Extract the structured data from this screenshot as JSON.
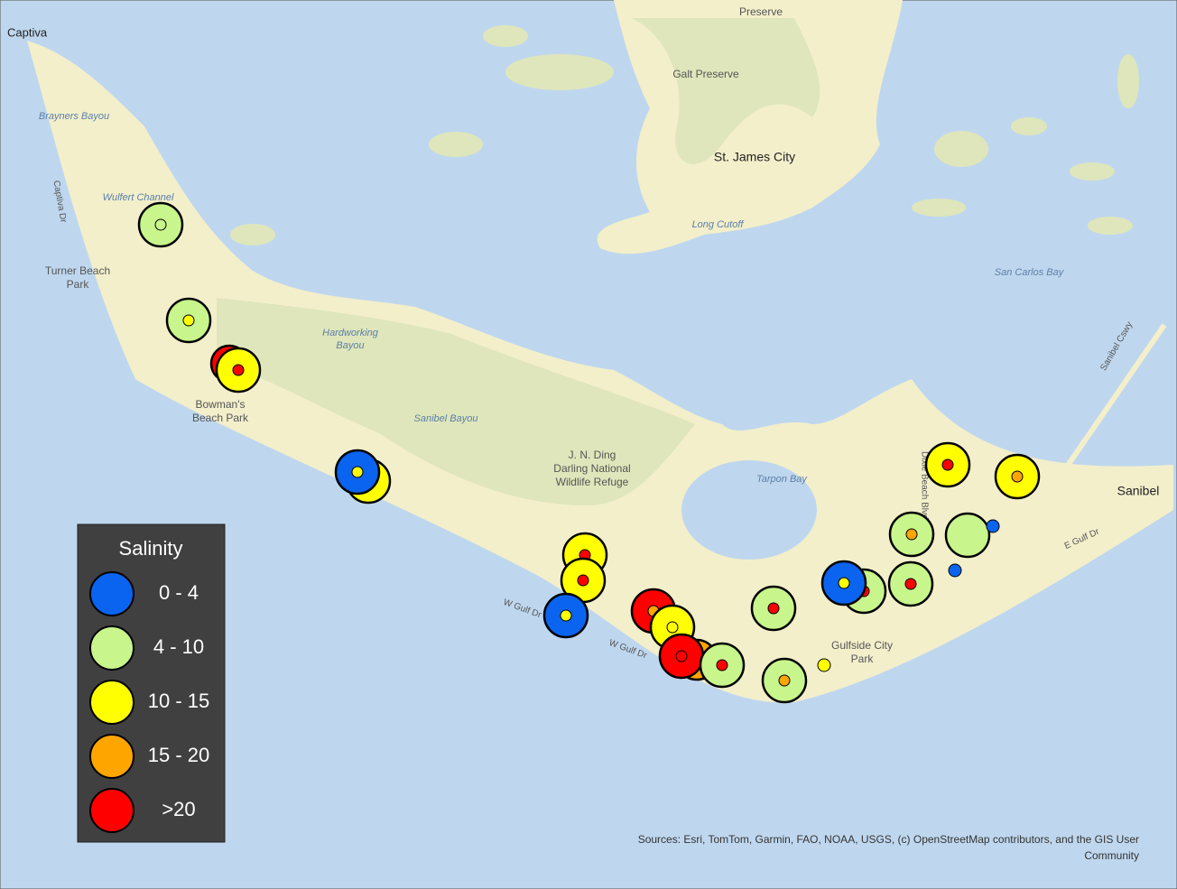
{
  "map": {
    "places": [
      "Captiva",
      "Preserve",
      "Galt Preserve",
      "St. James City",
      "Brayners Bayou",
      "Wulfert Channel",
      "Captiva Dr",
      "Turner Beach",
      "Park",
      "Long Cutoff",
      "San Carlos Bay",
      "Hardworking",
      "Bayou",
      "Sanibel Bayou",
      "J. N. Ding",
      "Darling National",
      "Wildlife Refuge",
      "Tarpon Bay",
      "Bowman's",
      "Beach Park",
      "Sanibel",
      "Gulfside City",
      "Park",
      "W Gulf Dr",
      "W Gulf Dr",
      "E Gulf Dr",
      "Sanibel Cswy",
      "Dixie Beach Blvd"
    ],
    "legend": {
      "title": "Salinity",
      "items": [
        {
          "label": "0 - 4",
          "color": "#0a64f0"
        },
        {
          "label": "4 - 10",
          "color": "#c8f58c"
        },
        {
          "label": "10 - 15",
          "color": "#ffff00"
        },
        {
          "label": "15 - 20",
          "color": "#ffa500"
        },
        {
          "label": ">20",
          "color": "#ff0000"
        }
      ]
    },
    "sources": [
      "Sources:  Esri, TomTom, Garmin, FAO, NOAA, USGS, (c) OpenStreetMap contributors, and the GIS User",
      "Community"
    ]
  }
}
